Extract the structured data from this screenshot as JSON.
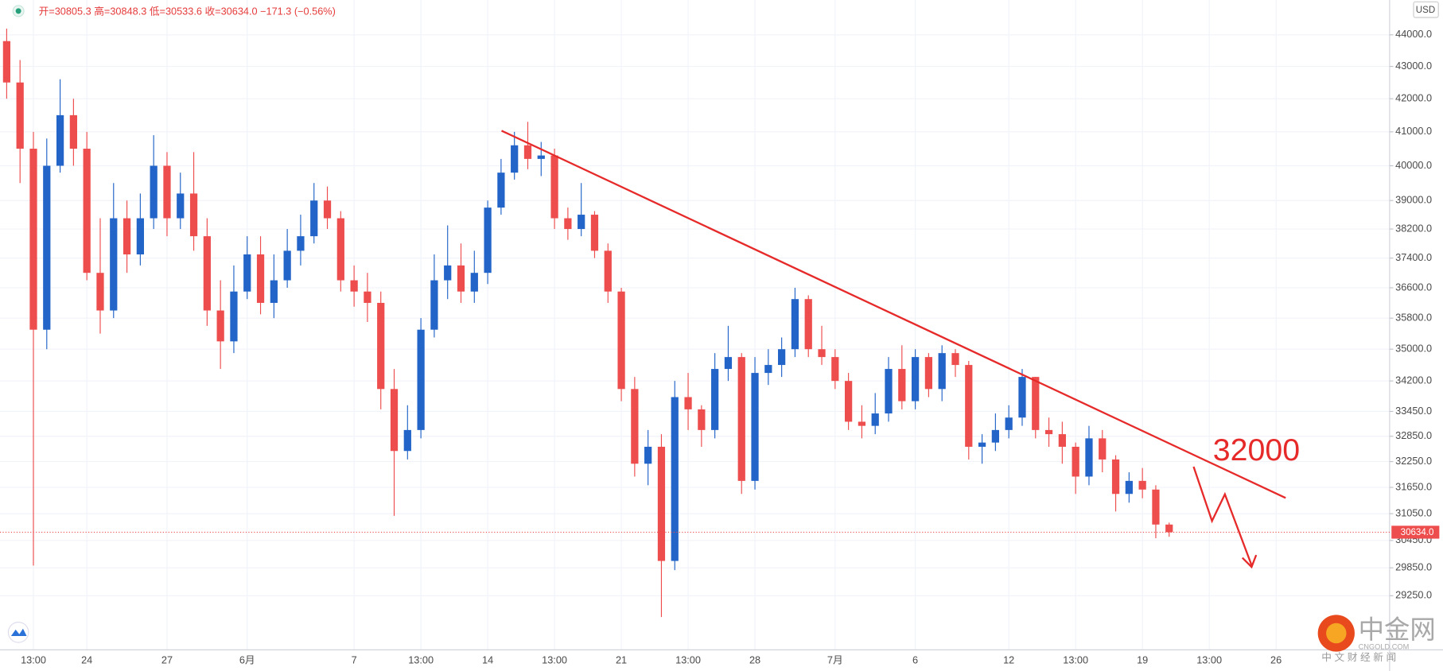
{
  "chart_data": {
    "type": "candlestick",
    "legend_text": "开=30805.3 高=30848.3 低=30533.6 收=30634.0 −171.3 (−0.56%)",
    "currency": "USD",
    "annotation": "32000",
    "last_price": 30634.0,
    "last_price_label": "30634.0",
    "log_scale": true,
    "grid": true,
    "up_color": "#2264c8",
    "down_color": "#ee4d4d",
    "ylim": [
      28120,
      45130
    ],
    "yticks": [
      {
        "value": 44000,
        "label": "44000.0"
      },
      {
        "value": 43000,
        "label": "43000.0"
      },
      {
        "value": 42000,
        "label": "42000.0"
      },
      {
        "value": 41000,
        "label": "41000.0"
      },
      {
        "value": 40000,
        "label": "40000.0"
      },
      {
        "value": 39000,
        "label": "39000.0"
      },
      {
        "value": 38200,
        "label": "38200.0"
      },
      {
        "value": 37400,
        "label": "37400.0"
      },
      {
        "value": 36600,
        "label": "36600.0"
      },
      {
        "value": 35800,
        "label": "35800.0"
      },
      {
        "value": 35000,
        "label": "35000.0"
      },
      {
        "value": 34200,
        "label": "34200.0"
      },
      {
        "value": 33450,
        "label": "33450.0"
      },
      {
        "value": 32850,
        "label": "32850.0"
      },
      {
        "value": 32250,
        "label": "32250.0"
      },
      {
        "value": 31650,
        "label": "31650.0"
      },
      {
        "value": 31050,
        "label": "31050.0"
      },
      {
        "value": 30450,
        "label": "30450.0"
      },
      {
        "value": 29850,
        "label": "29850.0"
      },
      {
        "value": 29250,
        "label": "29250.0"
      }
    ],
    "categories": [
      null,
      null,
      "13:00",
      null,
      null,
      null,
      "24",
      null,
      null,
      null,
      null,
      null,
      "27",
      null,
      null,
      null,
      null,
      null,
      "6月",
      null,
      null,
      null,
      null,
      null,
      null,
      null,
      "7",
      null,
      null,
      null,
      null,
      "13:00",
      null,
      null,
      null,
      null,
      "14",
      null,
      null,
      null,
      null,
      "13:00",
      null,
      null,
      null,
      null,
      "21",
      null,
      null,
      null,
      null,
      "13:00",
      null,
      null,
      null,
      null,
      "28",
      null,
      null,
      null,
      null,
      null,
      "7月",
      null,
      null,
      null,
      null,
      null,
      "6",
      null,
      null,
      null,
      null,
      null,
      null,
      "12",
      null,
      null,
      null,
      null,
      "13:00",
      null,
      null,
      null,
      null,
      "19",
      null,
      null,
      null,
      null,
      "13:00",
      null,
      null,
      null,
      null,
      "26",
      null,
      null,
      null,
      null,
      null,
      null,
      null,
      null
    ],
    "open": [
      43800,
      42500,
      40500,
      35500,
      40000,
      41500,
      40500,
      37000,
      36000,
      38500,
      37500,
      38500,
      40000,
      38500,
      39200,
      38000,
      36000,
      35200,
      36500,
      37500,
      36200,
      36800,
      37600,
      38000,
      39000,
      38500,
      36800,
      36500,
      36200,
      34000,
      32500,
      33000,
      35500,
      36800,
      37200,
      36500,
      37000,
      38800,
      39800,
      40600,
      40200,
      40300,
      38500,
      38200,
      38600,
      37600,
      36500,
      34000,
      32200,
      32600,
      30000,
      33800,
      33500,
      33000,
      34500,
      34800,
      31800,
      34400,
      34600,
      35000,
      36300,
      35000,
      34800,
      34200,
      33200,
      33100,
      33400,
      34500,
      33700,
      34800,
      34000,
      34900,
      34600,
      32600,
      32700,
      33000,
      33300,
      34300,
      33000,
      32900,
      32600,
      31900,
      32800,
      32300,
      31500,
      31800,
      31600,
      30805.3,
      null,
      null,
      null,
      null,
      null,
      null,
      null,
      null,
      null,
      null,
      null,
      null,
      null,
      null,
      null,
      null
    ],
    "high": [
      44200,
      43200,
      41000,
      40800,
      42600,
      42000,
      41000,
      38500,
      39500,
      39000,
      39200,
      40900,
      40400,
      39800,
      40400,
      38500,
      36800,
      37200,
      38000,
      38000,
      37500,
      38200,
      38600,
      39500,
      39400,
      38700,
      37200,
      37000,
      36500,
      34500,
      33600,
      35800,
      37500,
      38300,
      37800,
      37600,
      39000,
      40200,
      41000,
      41300,
      40700,
      40500,
      38800,
      39500,
      38700,
      37800,
      36600,
      34300,
      33000,
      32900,
      34200,
      34400,
      33600,
      34900,
      35600,
      34900,
      34800,
      35000,
      35300,
      36600,
      36400,
      35600,
      35000,
      34400,
      33600,
      33900,
      34800,
      35100,
      35000,
      34900,
      35100,
      35000,
      34700,
      32900,
      33400,
      33600,
      34500,
      34300,
      33300,
      33200,
      32700,
      33100,
      33000,
      32400,
      32000,
      32100,
      31700,
      30848.3,
      null,
      null,
      null,
      null,
      null,
      null,
      null,
      null,
      null,
      null,
      null,
      null,
      null,
      null,
      null,
      null
    ],
    "low": [
      42000,
      39500,
      29900,
      35000,
      39800,
      40000,
      36800,
      35400,
      35800,
      37000,
      37200,
      38200,
      38000,
      38200,
      37600,
      35600,
      34500,
      34900,
      36300,
      35900,
      35800,
      36600,
      37200,
      37800,
      38200,
      36500,
      36100,
      35700,
      33500,
      31000,
      32300,
      32800,
      35300,
      36300,
      36200,
      36200,
      36700,
      38600,
      39600,
      39900,
      39700,
      38200,
      37900,
      38000,
      37400,
      36200,
      33700,
      31900,
      31700,
      28800,
      29800,
      33000,
      32600,
      32800,
      34200,
      31500,
      31600,
      34100,
      34300,
      34800,
      34800,
      34600,
      34000,
      33000,
      32800,
      32900,
      33200,
      33500,
      33500,
      33800,
      33700,
      34300,
      32300,
      32200,
      32500,
      32800,
      33100,
      32800,
      32600,
      32200,
      31500,
      31700,
      32000,
      31100,
      31300,
      31400,
      30500,
      30533.6,
      null,
      null,
      null,
      null,
      null,
      null,
      null,
      null,
      null,
      null,
      null,
      null,
      null,
      null,
      null,
      null
    ],
    "close": [
      42500,
      40500,
      35500,
      40000,
      41500,
      40500,
      37000,
      36000,
      38500,
      37500,
      38500,
      40000,
      38500,
      39200,
      38000,
      36000,
      35200,
      36500,
      37500,
      36200,
      36800,
      37600,
      38000,
      39000,
      38500,
      36800,
      36500,
      36200,
      34000,
      32500,
      33000,
      35500,
      36800,
      37200,
      36500,
      37000,
      38800,
      39800,
      40600,
      40200,
      40300,
      38500,
      38200,
      38600,
      37600,
      36500,
      34000,
      32200,
      32600,
      30000,
      33800,
      33500,
      33000,
      34500,
      34800,
      31800,
      34400,
      34600,
      35000,
      36300,
      35000,
      34800,
      34200,
      33200,
      33100,
      33400,
      34500,
      33700,
      34800,
      34000,
      34900,
      34600,
      32600,
      32700,
      33000,
      33300,
      34300,
      33000,
      32900,
      32600,
      31900,
      32800,
      32300,
      31500,
      31800,
      31600,
      30805.3,
      30634,
      null,
      null,
      null,
      null,
      null,
      null,
      null,
      null,
      null,
      null,
      null,
      null,
      null,
      null,
      null,
      null
    ]
  },
  "watermark": {
    "brand": "中金网",
    "domain": "CNGOLD.COM",
    "tagline": "中 文 财 经 新 闻"
  }
}
